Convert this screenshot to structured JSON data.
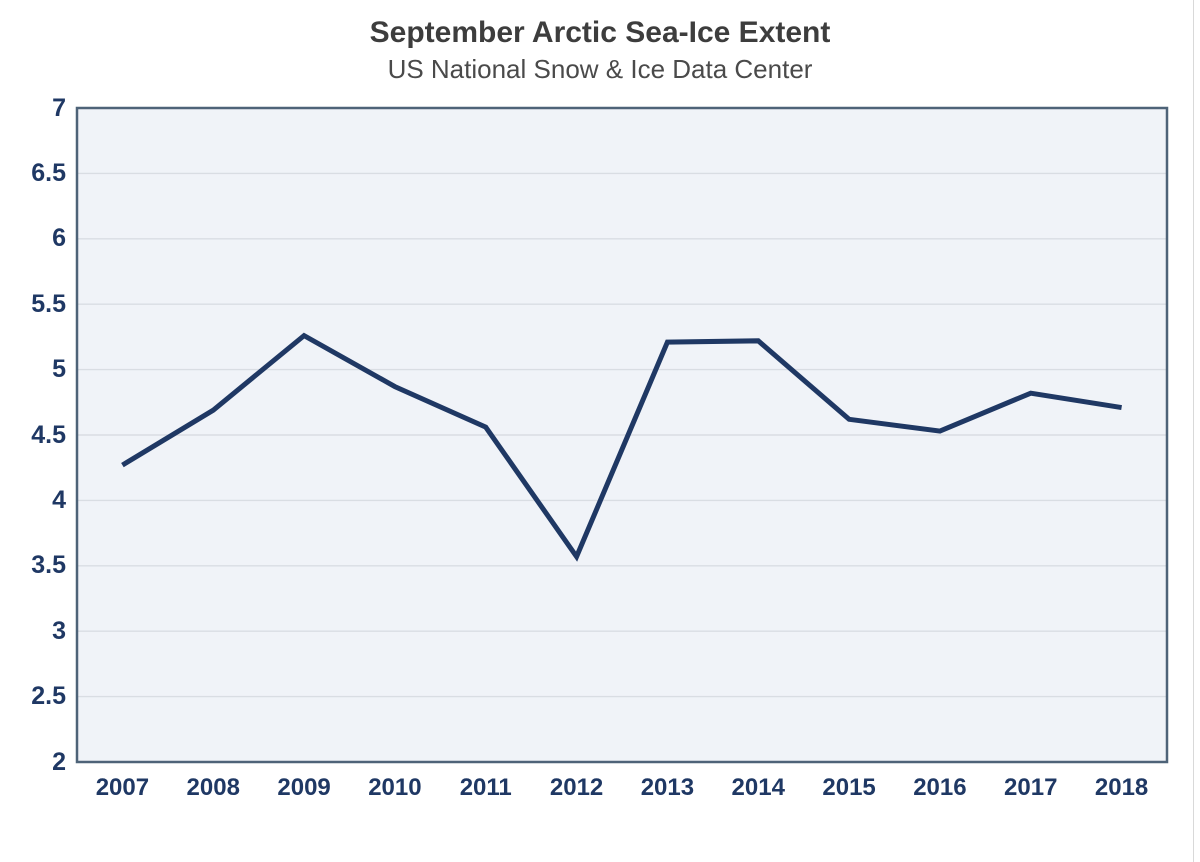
{
  "header": {
    "title": "September Arctic Sea-Ice Extent",
    "subtitle": "US National Snow & Ice Data Center"
  },
  "chart_data": {
    "type": "line",
    "title": "September Arctic Sea-Ice Extent",
    "subtitle": "US National Snow & Ice Data Center",
    "categories": [
      "2007",
      "2008",
      "2009",
      "2010",
      "2011",
      "2012",
      "2013",
      "2014",
      "2015",
      "2016",
      "2017",
      "2018"
    ],
    "series": [
      {
        "name": "September Arctic sea-ice extent",
        "values": [
          4.27,
          4.69,
          5.26,
          4.87,
          4.56,
          3.57,
          5.21,
          5.22,
          4.62,
          4.53,
          4.82,
          4.71
        ]
      }
    ],
    "xlabel": "",
    "ylabel": "",
    "ylim": [
      2,
      7
    ],
    "ytick_step": 0.5,
    "ytick_labels": [
      "7",
      "6.5",
      "6",
      "5.5",
      "5",
      "4.5",
      "4",
      "3.5",
      "3",
      "2.5",
      "2"
    ],
    "grid": "horizontal",
    "legend_position": "none",
    "colors": {
      "line": "#1f3864",
      "plot_background": "#f0f3f8",
      "plot_border": "#4e6378",
      "gridline": "#d9dde3",
      "tick_label": "#1f3864",
      "title": "#3d3d3d",
      "subtitle": "#4a4a4a",
      "page_background": "#ffffff",
      "page_edge": "#d9d9d9"
    }
  }
}
